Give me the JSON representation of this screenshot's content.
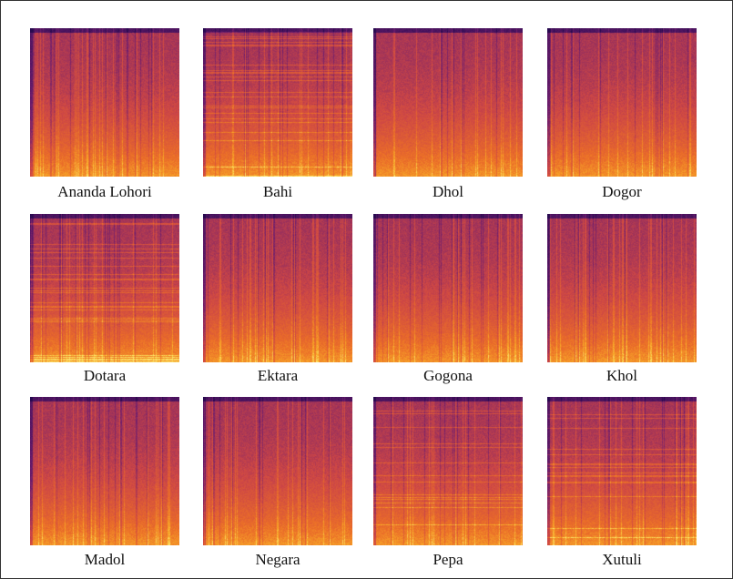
{
  "figure": {
    "panels": [
      {
        "label": "Ananda Lohori",
        "style": "stripes"
      },
      {
        "label": "Bahi",
        "style": "harmonic"
      },
      {
        "label": "Dhol",
        "style": "stripes"
      },
      {
        "label": "Dogor",
        "style": "stripes"
      },
      {
        "label": "Dotara",
        "style": "harmonic"
      },
      {
        "label": "Ektara",
        "style": "stripes"
      },
      {
        "label": "Gogona",
        "style": "stripes"
      },
      {
        "label": "Khol",
        "style": "stripes"
      },
      {
        "label": "Madol",
        "style": "stripes"
      },
      {
        "label": "Negara",
        "style": "stripes"
      },
      {
        "label": "Pepa",
        "style": "harmonic"
      },
      {
        "label": "Xutuli",
        "style": "harmonic"
      }
    ],
    "colors": {
      "low": "#3b0f6f",
      "mid": "#dd513a",
      "high": "#fcd24a"
    }
  }
}
